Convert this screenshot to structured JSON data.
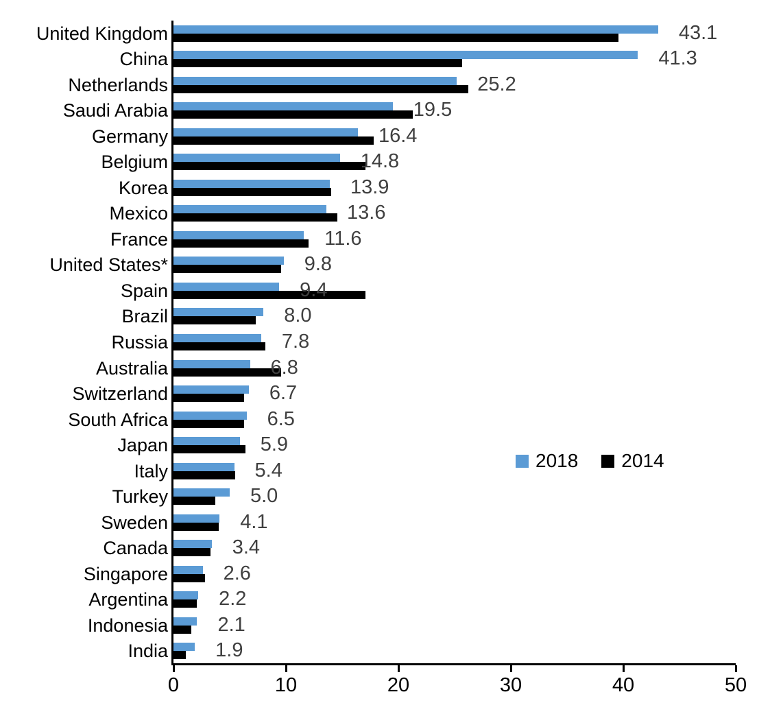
{
  "chart_data": {
    "type": "bar",
    "orientation": "horizontal",
    "title": "",
    "xlabel": "",
    "ylabel": "",
    "xlim": [
      0,
      50
    ],
    "x_ticks": [
      "0",
      "10",
      "20",
      "30",
      "40",
      "50"
    ],
    "grid": false,
    "legend_position": "middle-right",
    "categories": [
      "United Kingdom",
      "China",
      "Netherlands",
      "Saudi Arabia",
      "Germany",
      "Belgium",
      "Korea",
      "Mexico",
      "France",
      "United States*",
      "Spain",
      "Brazil",
      "Russia",
      "Australia",
      "Switzerland",
      "South Africa",
      "Japan",
      "Italy",
      "Turkey",
      "Sweden",
      "Canada",
      "Singapore",
      "Argentina",
      "Indonesia",
      "India"
    ],
    "series": [
      {
        "name": "2018",
        "color": "#5B9BD5",
        "values": [
          43.1,
          41.3,
          25.2,
          19.5,
          16.4,
          14.8,
          13.9,
          13.6,
          11.6,
          9.8,
          9.4,
          8.0,
          7.8,
          6.8,
          6.7,
          6.5,
          5.9,
          5.4,
          5.0,
          4.1,
          3.4,
          2.6,
          2.2,
          2.1,
          1.9
        ]
      },
      {
        "name": "2014",
        "color": "#000000",
        "values": [
          39.6,
          25.7,
          26.2,
          21.3,
          17.8,
          17.1,
          14.0,
          14.6,
          12.0,
          9.6,
          17.1,
          7.3,
          8.2,
          9.6,
          6.3,
          6.3,
          6.4,
          5.5,
          3.7,
          4.0,
          3.3,
          2.8,
          2.1,
          1.6,
          1.1
        ]
      }
    ],
    "data_labels": {
      "series": "2018",
      "color": "#404040",
      "values": [
        "43.1",
        "41.3",
        "25.2",
        "19.5",
        "16.4",
        "14.8",
        "13.9",
        "13.6",
        "11.6",
        "9.8",
        "9.4",
        "8.0",
        "7.8",
        "6.8",
        "6.7",
        "6.5",
        "5.9",
        "5.4",
        "5.0",
        "4.1",
        "3.4",
        "2.6",
        "2.2",
        "2.1",
        "1.9"
      ]
    }
  },
  "legend": {
    "items": [
      {
        "label": "2018",
        "color": "#5B9BD5"
      },
      {
        "label": "2014",
        "color": "#000000"
      }
    ]
  }
}
